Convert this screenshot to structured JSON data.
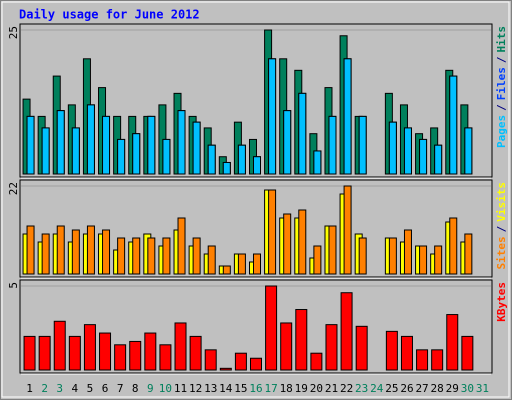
{
  "chart_data": [
    {
      "type": "bar",
      "title": "Daily usage for June 2012",
      "legend_separator": "/",
      "ylim": [
        0,
        25
      ],
      "yticks": [
        25
      ],
      "series": [
        {
          "name": "Hits",
          "color": "#00805c",
          "values": [
            13,
            10,
            17,
            12,
            20,
            15,
            10,
            10,
            10,
            12,
            14,
            10,
            8,
            3,
            9,
            6,
            25,
            20,
            18,
            7,
            15,
            24,
            10,
            0,
            14,
            12,
            7,
            8,
            18,
            12,
            0
          ]
        },
        {
          "name": "Files",
          "color": "#0040ff",
          "values": [
            10,
            8,
            11,
            8,
            12,
            10,
            6,
            7,
            10,
            6,
            11,
            9,
            5,
            2,
            5,
            3,
            20,
            11,
            14,
            4,
            10,
            20,
            10,
            0,
            9,
            8,
            6,
            5,
            17,
            8,
            0
          ]
        },
        {
          "name": "Pages",
          "color": "#00c0ff",
          "values": [
            10,
            8,
            11,
            8,
            12,
            10,
            6,
            7,
            10,
            6,
            11,
            9,
            5,
            2,
            5,
            3,
            20,
            11,
            14,
            4,
            10,
            20,
            10,
            0,
            9,
            8,
            6,
            5,
            17,
            8,
            0
          ]
        }
      ]
    },
    {
      "type": "bar",
      "legend_separator": "/",
      "ylim": [
        0,
        22
      ],
      "yticks": [
        22
      ],
      "series": [
        {
          "name": "Visits",
          "color": "#ffff00",
          "values": [
            10,
            8,
            10,
            8,
            10,
            10,
            6,
            8,
            10,
            7,
            11,
            7,
            5,
            2,
            5,
            3,
            21,
            14,
            14,
            4,
            12,
            20,
            10,
            0,
            9,
            8,
            7,
            5,
            13,
            8,
            0
          ]
        },
        {
          "name": "Sites",
          "color": "#ff8000",
          "values": [
            12,
            10,
            12,
            11,
            12,
            11,
            9,
            9,
            9,
            9,
            14,
            9,
            7,
            2,
            5,
            5,
            21,
            15,
            16,
            7,
            12,
            22,
            9,
            0,
            9,
            11,
            7,
            7,
            14,
            10,
            0
          ]
        }
      ]
    },
    {
      "type": "bar",
      "ylim": [
        0,
        5
      ],
      "yticks": [
        5
      ],
      "categories": [
        "1",
        "2",
        "3",
        "4",
        "5",
        "6",
        "7",
        "8",
        "9",
        "10",
        "11",
        "12",
        "13",
        "14",
        "15",
        "16",
        "17",
        "18",
        "19",
        "20",
        "21",
        "22",
        "23",
        "24",
        "25",
        "26",
        "27",
        "28",
        "29",
        "30",
        "31"
      ],
      "category_colors": [
        "#000000",
        "#00805c",
        "#00805c",
        "#000000",
        "#000000",
        "#000000",
        "#000000",
        "#000000",
        "#00805c",
        "#00805c",
        "#000000",
        "#000000",
        "#000000",
        "#000000",
        "#000000",
        "#00805c",
        "#00805c",
        "#000000",
        "#000000",
        "#000000",
        "#000000",
        "#000000",
        "#00805c",
        "#00805c",
        "#000000",
        "#000000",
        "#000000",
        "#000000",
        "#000000",
        "#00805c",
        "#00805c"
      ],
      "series": [
        {
          "name": "KBytes",
          "color": "#ff0000",
          "values": [
            2.0,
            2.0,
            2.9,
            2.0,
            2.7,
            2.2,
            1.5,
            1.7,
            2.2,
            1.5,
            2.8,
            2.0,
            1.2,
            0.1,
            1.0,
            0.7,
            5.0,
            2.8,
            3.6,
            1.0,
            2.7,
            4.6,
            2.6,
            0,
            2.3,
            2.0,
            1.2,
            1.2,
            3.3,
            2.0,
            0
          ]
        }
      ]
    }
  ]
}
